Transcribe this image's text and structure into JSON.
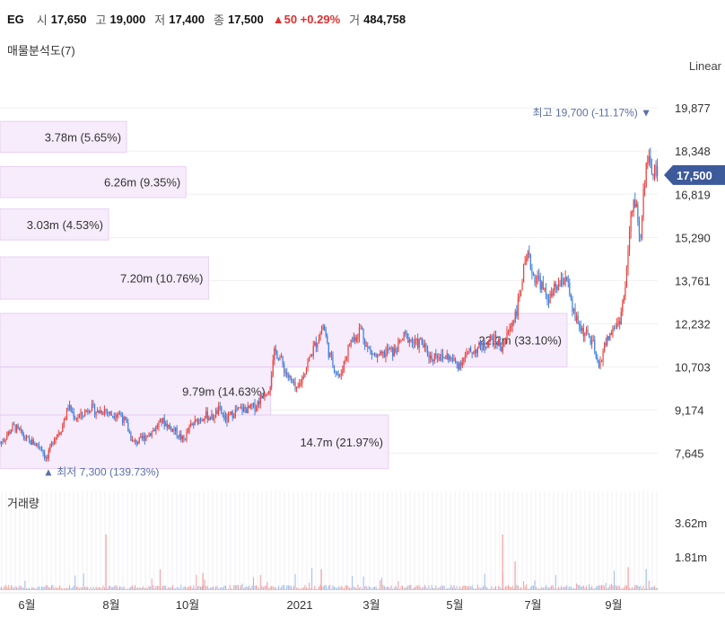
{
  "header": {
    "symbol": "EG",
    "open_label": "시",
    "open": "17,650",
    "high_label": "고",
    "high": "19,000",
    "low_label": "저",
    "low": "17,400",
    "close_label": "종",
    "close": "17,500",
    "change": "▲50 +0.29%",
    "volume_label": "거",
    "volume": "484,758"
  },
  "volume_profile_title": "매물분석도(7)",
  "scale_label": "Linear",
  "volume_pane_title": "거래량",
  "chart_data": {
    "type": "candlestick",
    "y_ticks": [
      19877,
      18348,
      16819,
      15290,
      13761,
      12232,
      10703,
      9174,
      7645
    ],
    "y_tick_labels": [
      "19,877",
      "18,348",
      "16,819",
      "15,290",
      "13,761",
      "12,232",
      "10,703",
      "9,174",
      "7,645"
    ],
    "ylim": [
      6900,
      20900
    ],
    "current_price": 17500,
    "current_price_label": "17,500",
    "x_tick_labels": [
      "6월",
      "8월",
      "10월",
      "2021",
      "3월",
      "5월",
      "7월",
      "9월"
    ],
    "high_marker": {
      "price": 19700,
      "label": "최고",
      "value": "19,700 (-11.17%)",
      "arrow": "▼"
    },
    "low_marker": {
      "price": 7300,
      "label": "최저",
      "value": "7,300 (139.73%)",
      "arrow": "▲"
    },
    "volume_profile": [
      {
        "label": "3.78m (5.65%)",
        "low": 18300,
        "high": 19400,
        "pct": 5.65
      },
      {
        "label": "6.26m (9.35%)",
        "low": 16700,
        "high": 17800,
        "pct": 9.35
      },
      {
        "label": "3.03m (4.53%)",
        "low": 15200,
        "high": 16300,
        "pct": 4.53
      },
      {
        "label": "7.20m (10.76%)",
        "low": 13100,
        "high": 14600,
        "pct": 10.76
      },
      {
        "label": "22.2m (33.10%)",
        "low": 10700,
        "high": 12600,
        "pct": 33.1
      },
      {
        "label": "9.79m (14.63%)",
        "low": 9000,
        "high": 10700,
        "pct": 14.63
      },
      {
        "label": "14.7m (21.97%)",
        "low": 7100,
        "high": 9000,
        "pct": 21.97
      }
    ],
    "price_path": [
      [
        0,
        8000
      ],
      [
        8,
        8300
      ],
      [
        15,
        8600
      ],
      [
        22,
        8400
      ],
      [
        30,
        8100
      ],
      [
        38,
        8000
      ],
      [
        45,
        7900
      ],
      [
        52,
        7400
      ],
      [
        60,
        8200
      ],
      [
        68,
        8500
      ],
      [
        76,
        9300
      ],
      [
        84,
        8900
      ],
      [
        92,
        9000
      ],
      [
        100,
        9300
      ],
      [
        108,
        9100
      ],
      [
        116,
        9200
      ],
      [
        124,
        9000
      ],
      [
        132,
        9100
      ],
      [
        140,
        8700
      ],
      [
        148,
        8000
      ],
      [
        156,
        8100
      ],
      [
        164,
        8300
      ],
      [
        172,
        8500
      ],
      [
        180,
        8800
      ],
      [
        188,
        8600
      ],
      [
        196,
        8400
      ],
      [
        204,
        8100
      ],
      [
        212,
        8600
      ],
      [
        220,
        8800
      ],
      [
        228,
        9000
      ],
      [
        236,
        8900
      ],
      [
        244,
        9200
      ],
      [
        252,
        8800
      ],
      [
        260,
        9100
      ],
      [
        268,
        9200
      ],
      [
        276,
        9200
      ],
      [
        284,
        9300
      ],
      [
        292,
        9700
      ],
      [
        300,
        10000
      ],
      [
        306,
        11300
      ],
      [
        312,
        11000
      ],
      [
        318,
        10500
      ],
      [
        324,
        10200
      ],
      [
        330,
        9800
      ],
      [
        336,
        10300
      ],
      [
        342,
        10800
      ],
      [
        348,
        11300
      ],
      [
        354,
        11700
      ],
      [
        360,
        12200
      ],
      [
        366,
        11200
      ],
      [
        372,
        10700
      ],
      [
        378,
        10300
      ],
      [
        384,
        11000
      ],
      [
        390,
        11600
      ],
      [
        396,
        11800
      ],
      [
        402,
        12100
      ],
      [
        408,
        11400
      ],
      [
        414,
        11200
      ],
      [
        420,
        11000
      ],
      [
        426,
        11100
      ],
      [
        432,
        11300
      ],
      [
        438,
        11200
      ],
      [
        444,
        11500
      ],
      [
        450,
        11800
      ],
      [
        456,
        11700
      ],
      [
        462,
        11500
      ],
      [
        468,
        11600
      ],
      [
        474,
        11300
      ],
      [
        480,
        11000
      ],
      [
        486,
        11200
      ],
      [
        492,
        11000
      ],
      [
        498,
        11100
      ],
      [
        504,
        10900
      ],
      [
        510,
        10800
      ],
      [
        516,
        11000
      ],
      [
        522,
        11200
      ],
      [
        528,
        11300
      ],
      [
        534,
        11400
      ],
      [
        540,
        11500
      ],
      [
        546,
        11700
      ],
      [
        552,
        11600
      ],
      [
        558,
        11400
      ],
      [
        564,
        11800
      ],
      [
        570,
        12300
      ],
      [
        576,
        12800
      ],
      [
        582,
        14000
      ],
      [
        588,
        14600
      ],
      [
        594,
        13900
      ],
      [
        600,
        13800
      ],
      [
        606,
        13300
      ],
      [
        612,
        13100
      ],
      [
        618,
        13500
      ],
      [
        624,
        13600
      ],
      [
        630,
        14000
      ],
      [
        636,
        12800
      ],
      [
        642,
        12300
      ],
      [
        648,
        12000
      ],
      [
        654,
        11800
      ],
      [
        660,
        11500
      ],
      [
        666,
        10600
      ],
      [
        672,
        11400
      ],
      [
        678,
        11800
      ],
      [
        684,
        12100
      ],
      [
        690,
        12400
      ],
      [
        696,
        13500
      ],
      [
        702,
        16000
      ],
      [
        708,
        16700
      ],
      [
        712,
        15000
      ],
      [
        716,
        16800
      ],
      [
        720,
        18200
      ],
      [
        724,
        17600
      ],
      [
        728,
        17700
      ],
      [
        732,
        17500
      ]
    ],
    "volume_ticks": [
      "3.62m",
      "1.81m"
    ],
    "volume_max": 4300000
  }
}
